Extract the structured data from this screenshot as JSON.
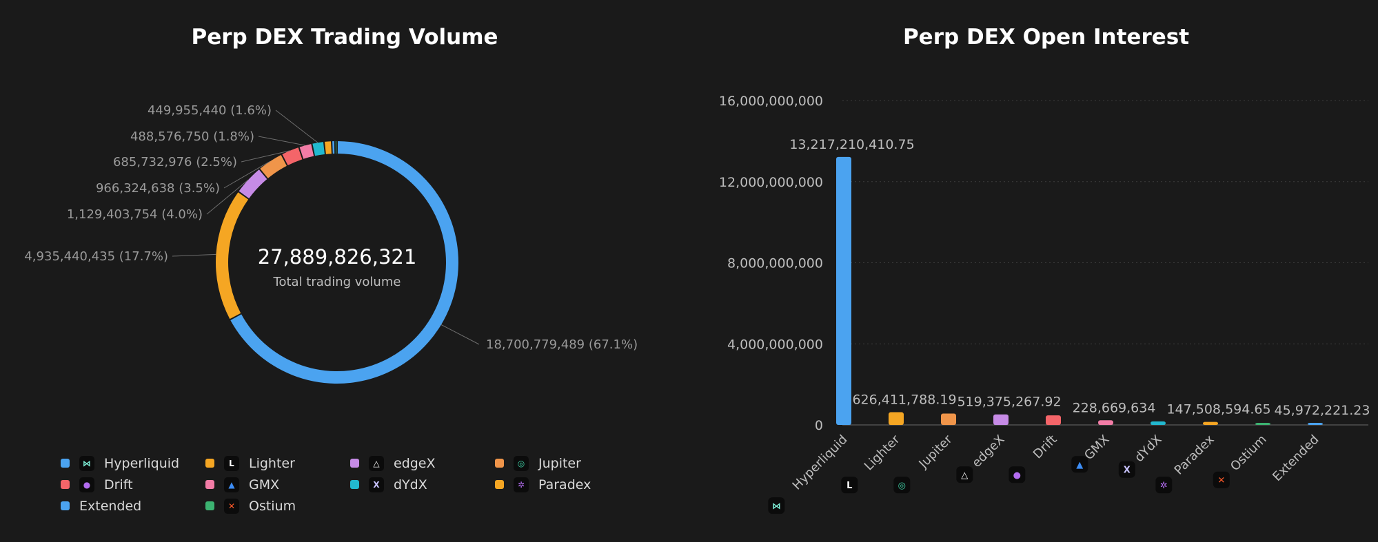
{
  "chart_data": [
    {
      "type": "pie",
      "variant": "donut",
      "title": "Perp DEX Trading Volume",
      "center_value": "27,889,826,321",
      "center_label": "Total trading volume",
      "slices": [
        {
          "name": "Hyperliquid",
          "value": 18700779489,
          "label": "18,700,779,489 (67.1%)",
          "color": "#4ba3f0"
        },
        {
          "name": "Lighter",
          "value": 4935440435,
          "label": "4,935,440,435 (17.7%)",
          "color": "#f5a623"
        },
        {
          "name": "edgeX",
          "value": 1129403754,
          "label": "1,129,403,754 (4.0%)",
          "color": "#c68be6"
        },
        {
          "name": "Jupiter",
          "value": 966324638,
          "label": "966,324,638 (3.5%)",
          "color": "#f0954a"
        },
        {
          "name": "Drift",
          "value": 685732976,
          "label": "685,732,976 (2.5%)",
          "color": "#f46569"
        },
        {
          "name": "GMX",
          "value": 488576750,
          "label": "488,576,750 (1.8%)",
          "color": "#f27ca6"
        },
        {
          "name": "dYdX",
          "value": 449955440,
          "label": "449,955,440 (1.6%)",
          "color": "#22b8cf"
        },
        {
          "name": "Paradex",
          "value": 280000000,
          "label": "",
          "color": "#f5a623"
        },
        {
          "name": "Extended",
          "value": 120000000,
          "label": "",
          "color": "#4ba3f0"
        },
        {
          "name": "Ostium",
          "value": 80000000,
          "label": "",
          "color": "#3cb371"
        }
      ],
      "legend": {
        "placement": "bottom",
        "items": [
          {
            "name": "Hyperliquid",
            "color": "#4ba3f0",
            "icon": "hyperliquid-logo-icon",
            "logo_color": "#7ef0d8",
            "glyph": "⋈"
          },
          {
            "name": "Lighter",
            "color": "#f5a623",
            "icon": "lighter-logo-icon",
            "logo_color": "#ffffff",
            "glyph": "L"
          },
          {
            "name": "edgeX",
            "color": "#c68be6",
            "icon": "edgex-logo-icon",
            "logo_color": "#ffffff",
            "glyph": "△"
          },
          {
            "name": "Jupiter",
            "color": "#f0954a",
            "icon": "jupiter-logo-icon",
            "logo_color": "#3fd3a8",
            "glyph": "◎"
          },
          {
            "name": "Drift",
            "color": "#f46569",
            "icon": "drift-logo-icon",
            "logo_color": "#b36cf0",
            "glyph": "●"
          },
          {
            "name": "GMX",
            "color": "#f27ca6",
            "icon": "gmx-logo-icon",
            "logo_color": "#3d8df5",
            "glyph": "▲"
          },
          {
            "name": "dYdX",
            "color": "#22b8cf",
            "icon": "dydx-logo-icon",
            "logo_color": "#c9c4ff",
            "glyph": "X"
          },
          {
            "name": "Paradex",
            "color": "#f5a623",
            "icon": "paradex-logo-icon",
            "logo_color": "#b36cf0",
            "glyph": "✲"
          },
          {
            "name": "Extended",
            "color": "#4ba3f0",
            "icon": "",
            "logo_color": "",
            "glyph": ""
          },
          {
            "name": "Ostium",
            "color": "#3cb371",
            "icon": "ostium-logo-icon",
            "logo_color": "#ff5a2a",
            "glyph": "✕"
          }
        ]
      }
    },
    {
      "type": "bar",
      "title": "Perp DEX Open Interest",
      "categories": [
        "Hyperliquid",
        "Lighter",
        "Jupiter",
        "edgeX",
        "Drift",
        "GMX",
        "dYdX",
        "Paradex",
        "Ostium",
        "Extended"
      ],
      "values": [
        13217210410.75,
        626411788.19,
        560000000,
        519375267.92,
        470000000,
        228669634,
        175000000,
        147508594.65,
        90000000,
        45972221.23
      ],
      "data_labels": [
        "13,217,210,410.75",
        "626,411,788.19",
        "",
        "519,375,267.92",
        "",
        "228,669,634",
        "",
        "147,508,594.65",
        "",
        "45,972,221.23"
      ],
      "colors": [
        "#4ba3f0",
        "#f5a623",
        "#f0954a",
        "#c68be6",
        "#f46569",
        "#f27ca6",
        "#22b8cf",
        "#f5a623",
        "#3cb371",
        "#4ba3f0"
      ],
      "category_icons": [
        {
          "icon": "hyperliquid-logo-icon",
          "logo_color": "#7ef0d8",
          "glyph": "⋈"
        },
        {
          "icon": "lighter-logo-icon",
          "logo_color": "#ffffff",
          "glyph": "L"
        },
        {
          "icon": "jupiter-logo-icon",
          "logo_color": "#3fd3a8",
          "glyph": "◎"
        },
        {
          "icon": "edgex-logo-icon",
          "logo_color": "#ffffff",
          "glyph": "△"
        },
        {
          "icon": "drift-logo-icon",
          "logo_color": "#b36cf0",
          "glyph": "●"
        },
        {
          "icon": "gmx-logo-icon",
          "logo_color": "#3d8df5",
          "glyph": "▲"
        },
        {
          "icon": "dydx-logo-icon",
          "logo_color": "#c9c4ff",
          "glyph": "X"
        },
        {
          "icon": "paradex-logo-icon",
          "logo_color": "#b36cf0",
          "glyph": "✲"
        },
        {
          "icon": "ostium-logo-icon",
          "logo_color": "#ff5a2a",
          "glyph": "✕"
        },
        {
          "icon": "",
          "logo_color": "",
          "glyph": ""
        }
      ],
      "ylim": [
        0,
        16000000000
      ],
      "yticks": [
        0,
        4000000000,
        8000000000,
        12000000000,
        16000000000
      ],
      "ytick_labels": [
        "0",
        "4,000,000,000",
        "8,000,000,000",
        "12,000,000,000",
        "16,000,000,000"
      ],
      "grid": true
    }
  ]
}
